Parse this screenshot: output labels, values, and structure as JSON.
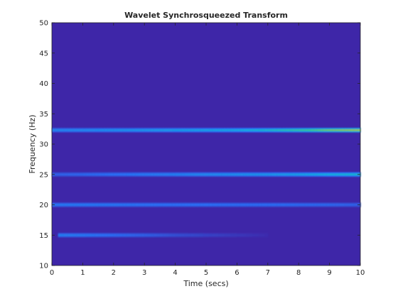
{
  "chart_data": {
    "type": "heatmap",
    "title": "Wavelet Synchrosqueezed Transform",
    "xlabel": "Time (secs)",
    "ylabel": "Frequency (Hz)",
    "xlim": [
      0,
      10
    ],
    "ylim": [
      10,
      50
    ],
    "xticks": [
      0,
      1,
      2,
      3,
      4,
      5,
      6,
      7,
      8,
      9,
      10
    ],
    "yticks": [
      10,
      15,
      20,
      25,
      30,
      35,
      40,
      45,
      50
    ],
    "xtick_labels": [
      "0",
      "1",
      "2",
      "3",
      "4",
      "5",
      "6",
      "7",
      "8",
      "9",
      "10"
    ],
    "ytick_labels": [
      "10",
      "15",
      "20",
      "25",
      "30",
      "35",
      "40",
      "45",
      "50"
    ],
    "grid": false,
    "colormap": "parula",
    "background_color": "#3e26a8",
    "ridges": [
      {
        "frequency": 15,
        "x": [
          0.2,
          1,
          2,
          3,
          4,
          5,
          6,
          7
        ],
        "intensity": [
          0.3,
          0.28,
          0.24,
          0.2,
          0.14,
          0.1,
          0.06,
          0.02
        ]
      },
      {
        "frequency": 20,
        "x": [
          0,
          1,
          2,
          3,
          4,
          5,
          6,
          7,
          8,
          9,
          10
        ],
        "intensity": [
          0.28,
          0.28,
          0.27,
          0.26,
          0.25,
          0.25,
          0.24,
          0.24,
          0.23,
          0.22,
          0.2
        ]
      },
      {
        "frequency": 25,
        "x": [
          0,
          1,
          2,
          3,
          4,
          5,
          6,
          7,
          8,
          9,
          10
        ],
        "intensity": [
          0.2,
          0.22,
          0.25,
          0.28,
          0.3,
          0.33,
          0.35,
          0.37,
          0.4,
          0.45,
          0.5
        ]
      },
      {
        "frequency": 32.3,
        "x": [
          0,
          1,
          2,
          3,
          4,
          5,
          6,
          7,
          8,
          9,
          10
        ],
        "intensity": [
          0.32,
          0.33,
          0.35,
          0.37,
          0.39,
          0.41,
          0.43,
          0.5,
          0.6,
          0.72,
          0.78
        ]
      }
    ]
  }
}
